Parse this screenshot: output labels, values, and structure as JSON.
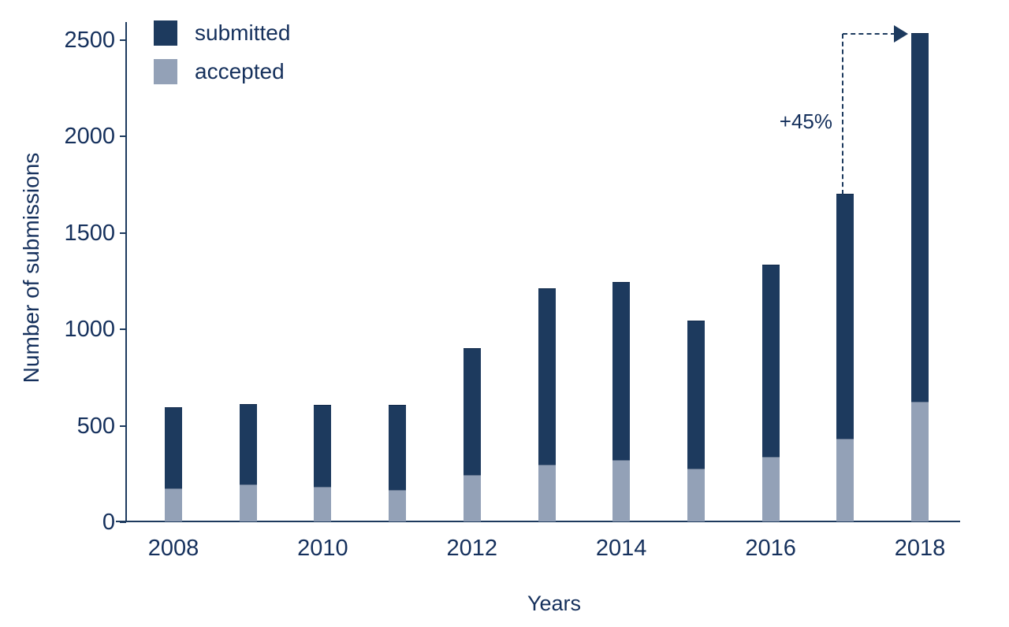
{
  "colors": {
    "navy": "#1d3a5e",
    "gray": "#93a1b7",
    "text": "#15305c",
    "edge": "#10294a"
  },
  "chart_data": {
    "type": "bar",
    "stacked": true,
    "title": "",
    "xlabel": "Years",
    "ylabel": "Number of submissions",
    "ylim": [
      0,
      2500
    ],
    "yticks": [
      0,
      500,
      1000,
      1500,
      2000,
      2500
    ],
    "ytick_labels": [
      "0",
      "500",
      "1000",
      "1500",
      "2000",
      "2500"
    ],
    "categories": [
      "2008",
      "2009",
      "2010",
      "2011",
      "2012",
      "2013",
      "2014",
      "2015",
      "2016",
      "2017",
      "2018"
    ],
    "x_tick_labels": [
      "2008",
      "2010",
      "2012",
      "2014",
      "2016",
      "2018"
    ],
    "series": [
      {
        "name": "submitted",
        "color": "#1d3a5e",
        "note": "values are bar totals",
        "values": [
          590,
          610,
          605,
          605,
          900,
          1210,
          1240,
          1040,
          1330,
          1700,
          2530
        ]
      },
      {
        "name": "accepted",
        "color": "#93a1b7",
        "values": [
          170,
          190,
          180,
          165,
          240,
          295,
          320,
          275,
          335,
          430,
          620
        ]
      }
    ],
    "legend": [
      "submitted",
      "accepted"
    ],
    "legend_position": "top-left",
    "grid": false,
    "annotation": {
      "text": "+45%",
      "from_year": "2017",
      "to_year": "2018"
    }
  }
}
